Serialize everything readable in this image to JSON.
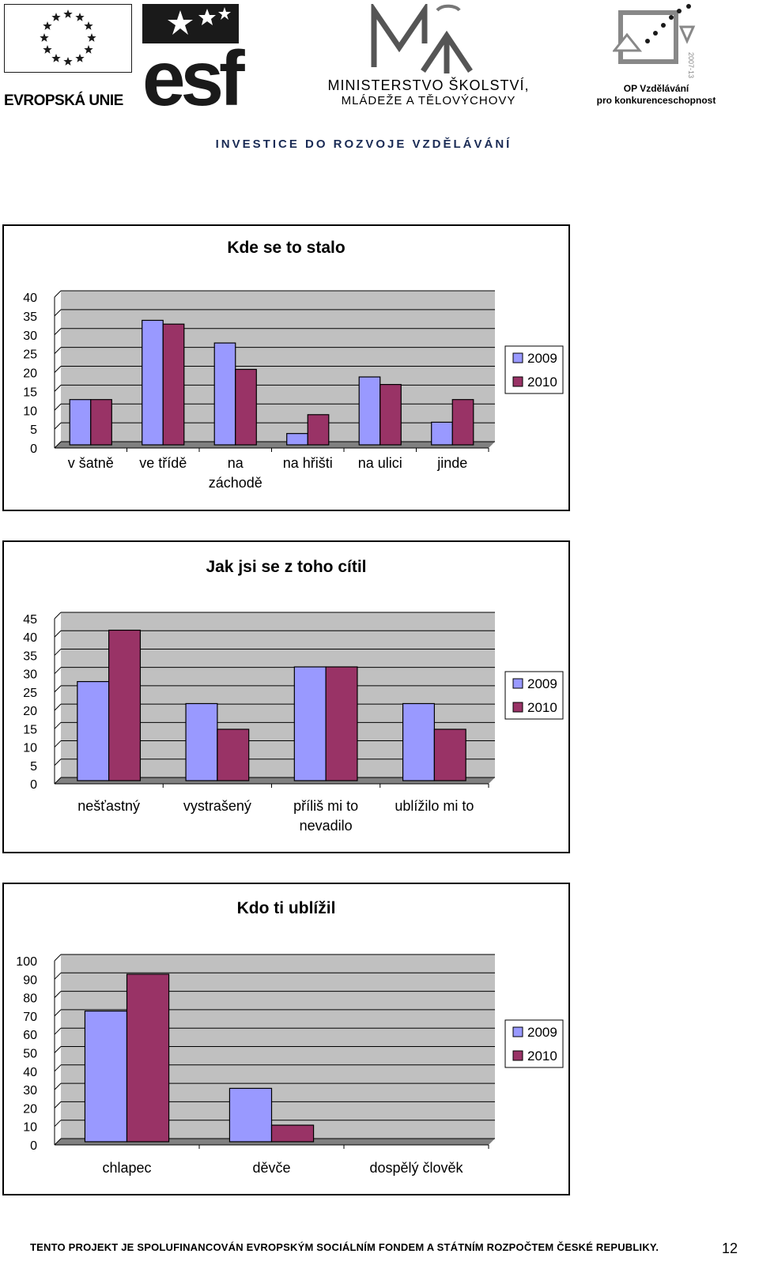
{
  "header": {
    "eu_label": "EVROPSKÁ UNIE",
    "esf_label": "esf",
    "msmt_line1": "MINISTERSTVO ŠKOLSTVÍ,",
    "msmt_line2": "MLÁDEŽE A TĚLOVÝCHOVY",
    "op_line1": "OP Vzdělávání",
    "op_line2": "pro konkurenceschopnost",
    "op_year": "2007-13",
    "tagline": "INVESTICE DO ROZVOJE VZDĚLÁVÁNÍ"
  },
  "colors": {
    "series_2009": "#9999ff",
    "series_2010": "#993366",
    "plot_bg": "#c0c0c0",
    "eu_blue": "#ffffff",
    "esf_dark": "#1a1a1a"
  },
  "chart_data": [
    {
      "type": "bar",
      "title": "Kde se to stalo",
      "categories": [
        "v šatně",
        "ve třídě",
        "na záchodě",
        "na hřišti",
        "na ulici",
        "jinde"
      ],
      "category_lines": [
        [
          "v šatně"
        ],
        [
          "ve třídě"
        ],
        [
          "na",
          "záchodě"
        ],
        [
          "na hřišti"
        ],
        [
          "na ulici"
        ],
        [
          "jinde"
        ]
      ],
      "series": [
        {
          "name": "2009",
          "values": [
            12,
            33,
            27,
            3,
            18,
            6
          ]
        },
        {
          "name": "2010",
          "values": [
            12,
            32,
            20,
            8,
            16,
            12
          ]
        }
      ],
      "ylim": [
        0,
        40
      ],
      "yticks": [
        "0",
        "5",
        "10",
        "15",
        "20",
        "25",
        "30",
        "35",
        "40"
      ],
      "grid": true,
      "legend": "right"
    },
    {
      "type": "bar",
      "title": "Jak jsi se z toho cítil",
      "categories": [
        "nešťastný",
        "vystrašený",
        "příliš mi to nevadilo",
        "ublížilo mi to"
      ],
      "category_lines": [
        [
          "nešťastný"
        ],
        [
          "vystrašený"
        ],
        [
          "příliš mi to",
          "nevadilo"
        ],
        [
          "ublížilo mi to"
        ]
      ],
      "series": [
        {
          "name": "2009",
          "values": [
            27,
            21,
            31,
            21
          ]
        },
        {
          "name": "2010",
          "values": [
            41,
            14,
            31,
            14
          ]
        }
      ],
      "ylim": [
        0,
        45
      ],
      "yticks": [
        "0",
        "5",
        "10",
        "15",
        "20",
        "25",
        "30",
        "35",
        "40",
        "45"
      ],
      "grid": true,
      "legend": "right"
    },
    {
      "type": "bar",
      "title": "Kdo ti ublížil",
      "categories": [
        "chlapec",
        "děvče",
        "dospělý člověk"
      ],
      "category_lines": [
        [
          "chlapec"
        ],
        [
          "děvče"
        ],
        [
          "dospělý člověk"
        ]
      ],
      "series": [
        {
          "name": "2009",
          "values": [
            71,
            29,
            0
          ]
        },
        {
          "name": "2010",
          "values": [
            91,
            9,
            0
          ]
        }
      ],
      "ylim": [
        0,
        100
      ],
      "yticks": [
        "0",
        "10",
        "20",
        "30",
        "40",
        "50",
        "60",
        "70",
        "80",
        "90",
        "100"
      ],
      "grid": true,
      "legend": "right"
    }
  ],
  "footer": {
    "text": "TENTO PROJEKT JE SPOLUFINANCOVÁN EVROPSKÝM SOCIÁLNÍM FONDEM A STÁTNÍM ROZPOČTEM ČESKÉ REPUBLIKY.",
    "page_number": "12"
  }
}
